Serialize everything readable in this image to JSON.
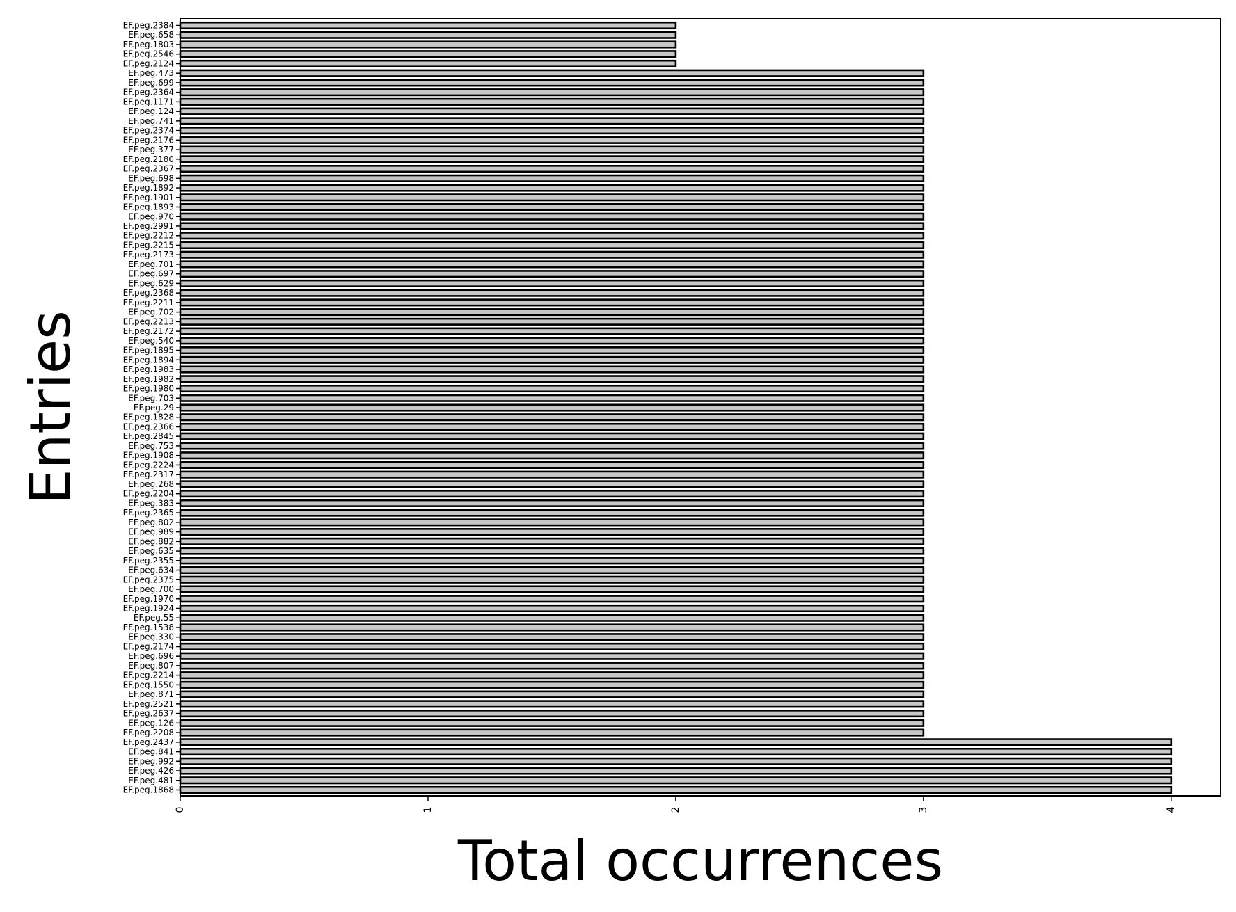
{
  "chart_data": {
    "type": "bar",
    "orientation": "horizontal",
    "xlabel": "Total occurrences",
    "ylabel": "Entries",
    "xlim": [
      0,
      4.2
    ],
    "xticks": [
      "0",
      "1",
      "2",
      "3",
      "4"
    ],
    "grid": false,
    "colors": {
      "bar_fill": "#c8c8c8",
      "bar_edge": "#000000"
    },
    "categories": [
      "EF.peg.2384",
      "EF.peg.658",
      "EF.peg.1803",
      "EF.peg.2546",
      "EF.peg.2124",
      "EF.peg.473",
      "EF.peg.699",
      "EF.peg.2364",
      "EF.peg.1171",
      "EF.peg.124",
      "EF.peg.741",
      "EF.peg.2374",
      "EF.peg.2176",
      "EF.peg.377",
      "EF.peg.2180",
      "EF.peg.2367",
      "EF.peg.698",
      "EF.peg.1892",
      "EF.peg.1901",
      "EF.peg.1893",
      "EF.peg.970",
      "EF.peg.2991",
      "EF.peg.2212",
      "EF.peg.2215",
      "EF.peg.2173",
      "EF.peg.701",
      "EF.peg.697",
      "EF.peg.629",
      "EF.peg.2368",
      "EF.peg.2211",
      "EF.peg.702",
      "EF.peg.2213",
      "EF.peg.2172",
      "EF.peg.540",
      "EF.peg.1895",
      "EF.peg.1894",
      "EF.peg.1983",
      "EF.peg.1982",
      "EF.peg.1980",
      "EF.peg.703",
      "EF.peg.29",
      "EF.peg.1828",
      "EF.peg.2366",
      "EF.peg.2845",
      "EF.peg.753",
      "EF.peg.1908",
      "EF.peg.2224",
      "EF.peg.2317",
      "EF.peg.268",
      "EF.peg.2204",
      "EF.peg.383",
      "EF.peg.2365",
      "EF.peg.802",
      "EF.peg.989",
      "EF.peg.882",
      "EF.peg.635",
      "EF.peg.2355",
      "EF.peg.634",
      "EF.peg.2375",
      "EF.peg.700",
      "EF.peg.1970",
      "EF.peg.1924",
      "EF.peg.55",
      "EF.peg.1538",
      "EF.peg.330",
      "EF.peg.2174",
      "EF.peg.696",
      "EF.peg.807",
      "EF.peg.2214",
      "EF.peg.1550",
      "EF.peg.871",
      "EF.peg.2521",
      "EF.peg.2637",
      "EF.peg.126",
      "EF.peg.2208",
      "EF.peg.2437",
      "EF.peg.841",
      "EF.peg.992",
      "EF.peg.426",
      "EF.peg.481",
      "EF.peg.1868"
    ],
    "values": [
      2,
      2,
      2,
      2,
      2,
      3,
      3,
      3,
      3,
      3,
      3,
      3,
      3,
      3,
      3,
      3,
      3,
      3,
      3,
      3,
      3,
      3,
      3,
      3,
      3,
      3,
      3,
      3,
      3,
      3,
      3,
      3,
      3,
      3,
      3,
      3,
      3,
      3,
      3,
      3,
      3,
      3,
      3,
      3,
      3,
      3,
      3,
      3,
      3,
      3,
      3,
      3,
      3,
      3,
      3,
      3,
      3,
      3,
      3,
      3,
      3,
      3,
      3,
      3,
      3,
      3,
      3,
      3,
      3,
      3,
      3,
      3,
      3,
      3,
      3,
      4,
      4,
      4,
      4,
      4,
      4
    ]
  }
}
